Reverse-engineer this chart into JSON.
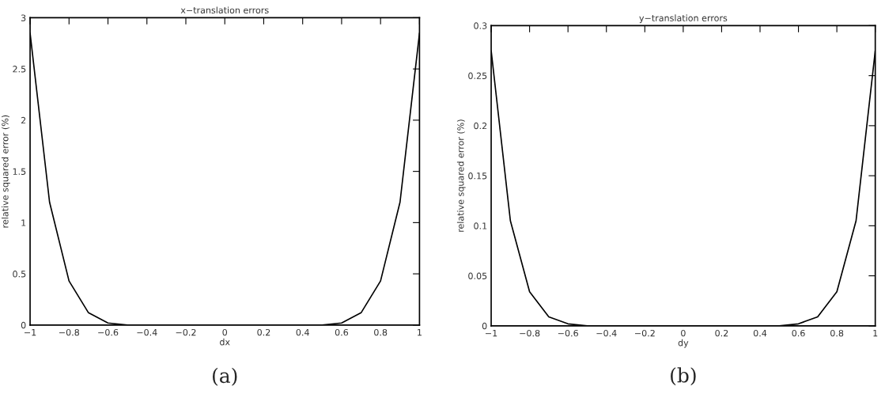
{
  "chart_data": [
    {
      "type": "line",
      "title": "x−translation errors",
      "xlabel": "dx",
      "ylabel": "relative squared error (%)",
      "x": [
        -1,
        -0.9,
        -0.8,
        -0.7,
        -0.6,
        -0.5,
        -0.4,
        -0.3,
        -0.2,
        -0.1,
        0,
        0.1,
        0.2,
        0.3,
        0.4,
        0.5,
        0.6,
        0.7,
        0.8,
        0.9,
        1
      ],
      "series": [
        {
          "color": "#000000",
          "values": [
            2.85,
            1.2,
            0.43,
            0.12,
            0.02,
            0,
            0,
            0,
            0,
            0,
            0,
            0,
            0,
            0,
            0,
            0,
            0.02,
            0.12,
            0.43,
            1.2,
            2.85
          ]
        }
      ],
      "xlim": [
        -1,
        1
      ],
      "ylim": [
        0,
        3
      ],
      "xticks": [
        {
          "value": -1,
          "label": "−1"
        },
        {
          "value": -0.8,
          "label": "−0.8"
        },
        {
          "value": -0.6,
          "label": "−0.6"
        },
        {
          "value": -0.4,
          "label": "−0.4"
        },
        {
          "value": -0.2,
          "label": "−0.2"
        },
        0,
        0.2,
        0.4,
        0.6,
        0.8,
        1
      ],
      "yticks": [
        0,
        0.5,
        1,
        1.5,
        2,
        2.5,
        3
      ],
      "grid": false,
      "marker": "none",
      "line_style": "solid",
      "annotations": [
        "(a)"
      ]
    },
    {
      "type": "line",
      "title": "y−translation errors",
      "xlabel": "dy",
      "ylabel": "relative squared error (%)",
      "x": [
        -1,
        -0.9,
        -0.8,
        -0.7,
        -0.6,
        -0.5,
        -0.4,
        -0.3,
        -0.2,
        -0.1,
        0,
        0.1,
        0.2,
        0.3,
        0.4,
        0.5,
        0.6,
        0.7,
        0.8,
        0.9,
        1
      ],
      "series": [
        {
          "color": "#000000",
          "values": [
            0.275,
            0.105,
            0.034,
            0.009,
            0.002,
            0,
            0,
            0,
            0,
            0,
            0,
            0,
            0,
            0,
            0,
            0,
            0.002,
            0.009,
            0.034,
            0.105,
            0.275
          ]
        }
      ],
      "xlim": [
        -1,
        1
      ],
      "ylim": [
        0,
        0.3
      ],
      "xticks": [
        {
          "value": -1,
          "label": "−1"
        },
        {
          "value": -0.8,
          "label": "−0.8"
        },
        {
          "value": -0.6,
          "label": "−0.6"
        },
        {
          "value": -0.4,
          "label": "−0.4"
        },
        {
          "value": -0.2,
          "label": "−0.2"
        },
        0,
        0.2,
        0.4,
        0.6,
        0.8,
        1
      ],
      "yticks": [
        0,
        0.05,
        0.1,
        0.15,
        0.2,
        0.25,
        0.3
      ],
      "grid": false,
      "marker": "none",
      "line_style": "solid",
      "annotations": [
        "(b)"
      ]
    }
  ]
}
